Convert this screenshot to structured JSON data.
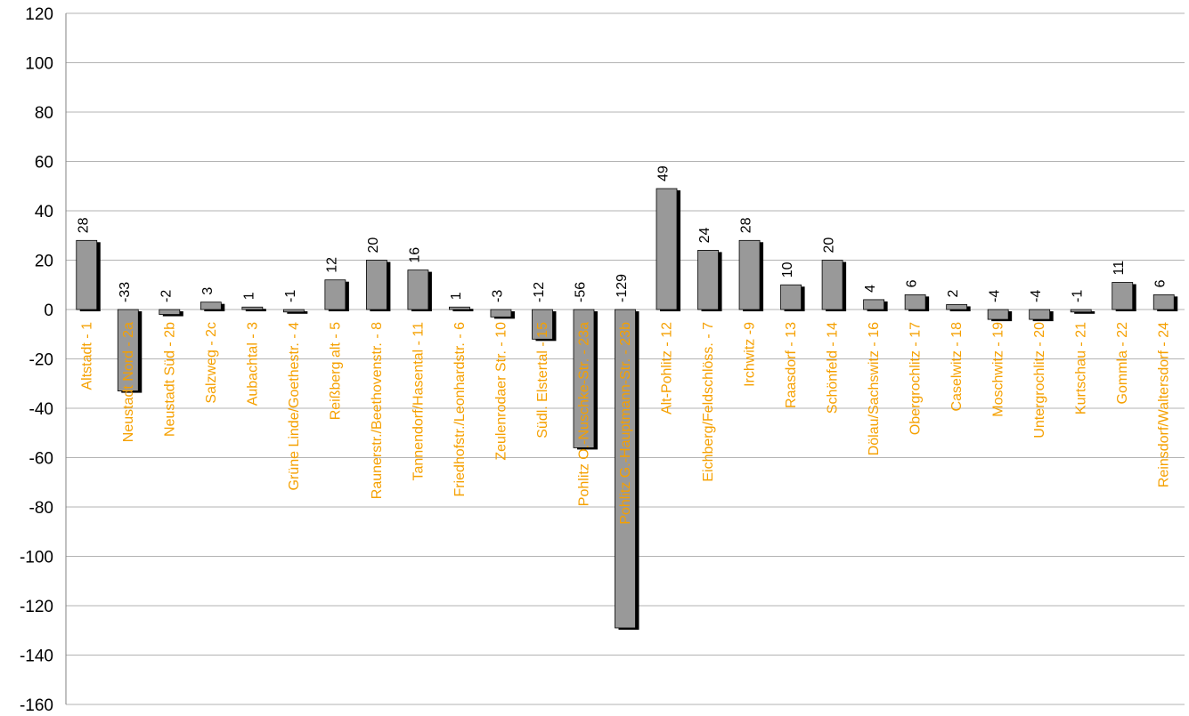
{
  "chart_data": {
    "type": "bar",
    "categories": [
      "Altstadt - 1",
      "Neustadt Nord - 2a",
      "Neustadt Süd - 2b",
      "Salzweg - 2c",
      "Aubachtal - 3",
      "Grüne Linde/Goethestr. - 4",
      "Reißberg alt - 5",
      "Raunerstr./Beethovenstr. - 8",
      "Tannendorf/Hasental - 11",
      "Friedhofstr./Leonhardstr. - 6",
      "Zeulenrodaer Str. - 10",
      "Südl. Elstertal - 15",
      "Pohlitz O.-Nuschke-Str. - 23a",
      "Pohlitz G.-Hauptmann-Str. - 23b",
      "Alt-Pohlitz - 12",
      "Eichberg/Feldschlöss. - 7",
      "Irchwitz -9",
      "Raasdorf - 13",
      "Schönfeld - 14",
      "Dölau/Sachswitz - 16",
      "Obergrochlitz - 17",
      "Caselwitz - 18",
      "Moschwitz - 19",
      "Untergrochlitz - 20",
      "Kurtschau - 21",
      "Gommla - 22",
      "Reinsdorf/Waltersdorf - 24"
    ],
    "values": [
      28,
      -33,
      -2,
      3,
      1,
      -1,
      12,
      20,
      16,
      1,
      -3,
      -12,
      -56,
      -129,
      49,
      24,
      28,
      10,
      20,
      4,
      6,
      2,
      -4,
      -4,
      -1,
      11,
      6
    ],
    "value_labels": [
      "28",
      "-33",
      "-2",
      "3",
      "1",
      "-1",
      "12",
      "20",
      "16",
      "1",
      "-3",
      "-12",
      "-56",
      "-129",
      "49",
      "24",
      "28",
      "10",
      "20",
      "4",
      "6",
      "2",
      "-4",
      "-4",
      "-1",
      "11",
      "6"
    ],
    "yticks": [
      "120",
      "100",
      "80",
      "60",
      "40",
      "20",
      "0",
      "-20",
      "-40",
      "-60",
      "-80",
      "-100",
      "-120",
      "-140",
      "-160"
    ],
    "ylim": [
      -160,
      120
    ],
    "grid": true,
    "title": "",
    "xlabel": "",
    "ylabel": "",
    "colors": {
      "bar": "#999999",
      "bar_shadow": "#000000",
      "category_label": "#f5a000",
      "grid": "#b3b3b3",
      "axis": "#808080"
    }
  }
}
